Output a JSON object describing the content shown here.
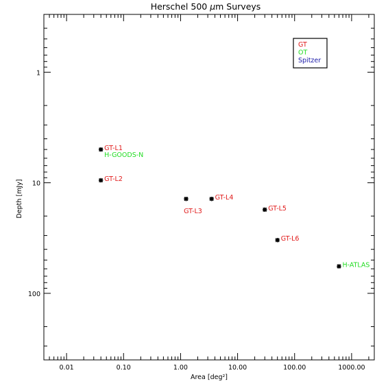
{
  "chart_data": {
    "type": "scatter",
    "title": "Herschel 500 μm Surveys",
    "title_parts": {
      "pre": "Herschel 500 ",
      "unit_prefix": "μ",
      "unit_rest": "m Surveys"
    },
    "xlabel": "Area [deg²]",
    "ylabel": "Depth [mJy]",
    "x_scale": "log",
    "y_scale": "log",
    "y_inverted": true,
    "xlim": [
      0.004,
      2500
    ],
    "ylim": [
      0.3,
      400
    ],
    "x_ticks": [
      {
        "value": 0.01,
        "label": "0.01"
      },
      {
        "value": 0.1,
        "label": "0.10"
      },
      {
        "value": 1,
        "label": "1.00"
      },
      {
        "value": 10,
        "label": "10.00"
      },
      {
        "value": 100,
        "label": "100.00"
      },
      {
        "value": 1000,
        "label": "1000.00"
      }
    ],
    "y_ticks": [
      {
        "value": 1,
        "label": "1"
      },
      {
        "value": 10,
        "label": "10"
      },
      {
        "value": 100,
        "label": "100"
      }
    ],
    "grid": false,
    "legend": {
      "position": "top-right",
      "entries": [
        {
          "label": "GT",
          "color": "#e01818"
        },
        {
          "label": "OT",
          "color": "#22dd22"
        },
        {
          "label": "Spitzer",
          "color": "#1a1aa8"
        }
      ]
    },
    "series": [
      {
        "name": "GT",
        "color": "#e01818",
        "points": [
          {
            "label": "GT-L1",
            "x": 0.04,
            "y": 5.0,
            "label_pos": "right-up"
          },
          {
            "label": "GT-L2",
            "x": 0.04,
            "y": 9.5,
            "label_pos": "right-up"
          },
          {
            "label": "GT-L3",
            "x": 1.25,
            "y": 14.0,
            "label_pos": "below"
          },
          {
            "label": "GT-L4",
            "x": 3.5,
            "y": 14.0,
            "label_pos": "right-up"
          },
          {
            "label": "GT-L5",
            "x": 30,
            "y": 17.5,
            "label_pos": "right-up"
          },
          {
            "label": "GT-L6",
            "x": 50,
            "y": 33.0,
            "label_pos": "right-up"
          }
        ]
      },
      {
        "name": "OT",
        "color": "#22dd22",
        "points": [
          {
            "label": "H-GOODS-N",
            "x": 0.04,
            "y": 5.0,
            "label_pos": "right-down"
          },
          {
            "label": "H-ATLAS",
            "x": 600,
            "y": 57.0,
            "label_pos": "right-up"
          }
        ]
      }
    ]
  }
}
